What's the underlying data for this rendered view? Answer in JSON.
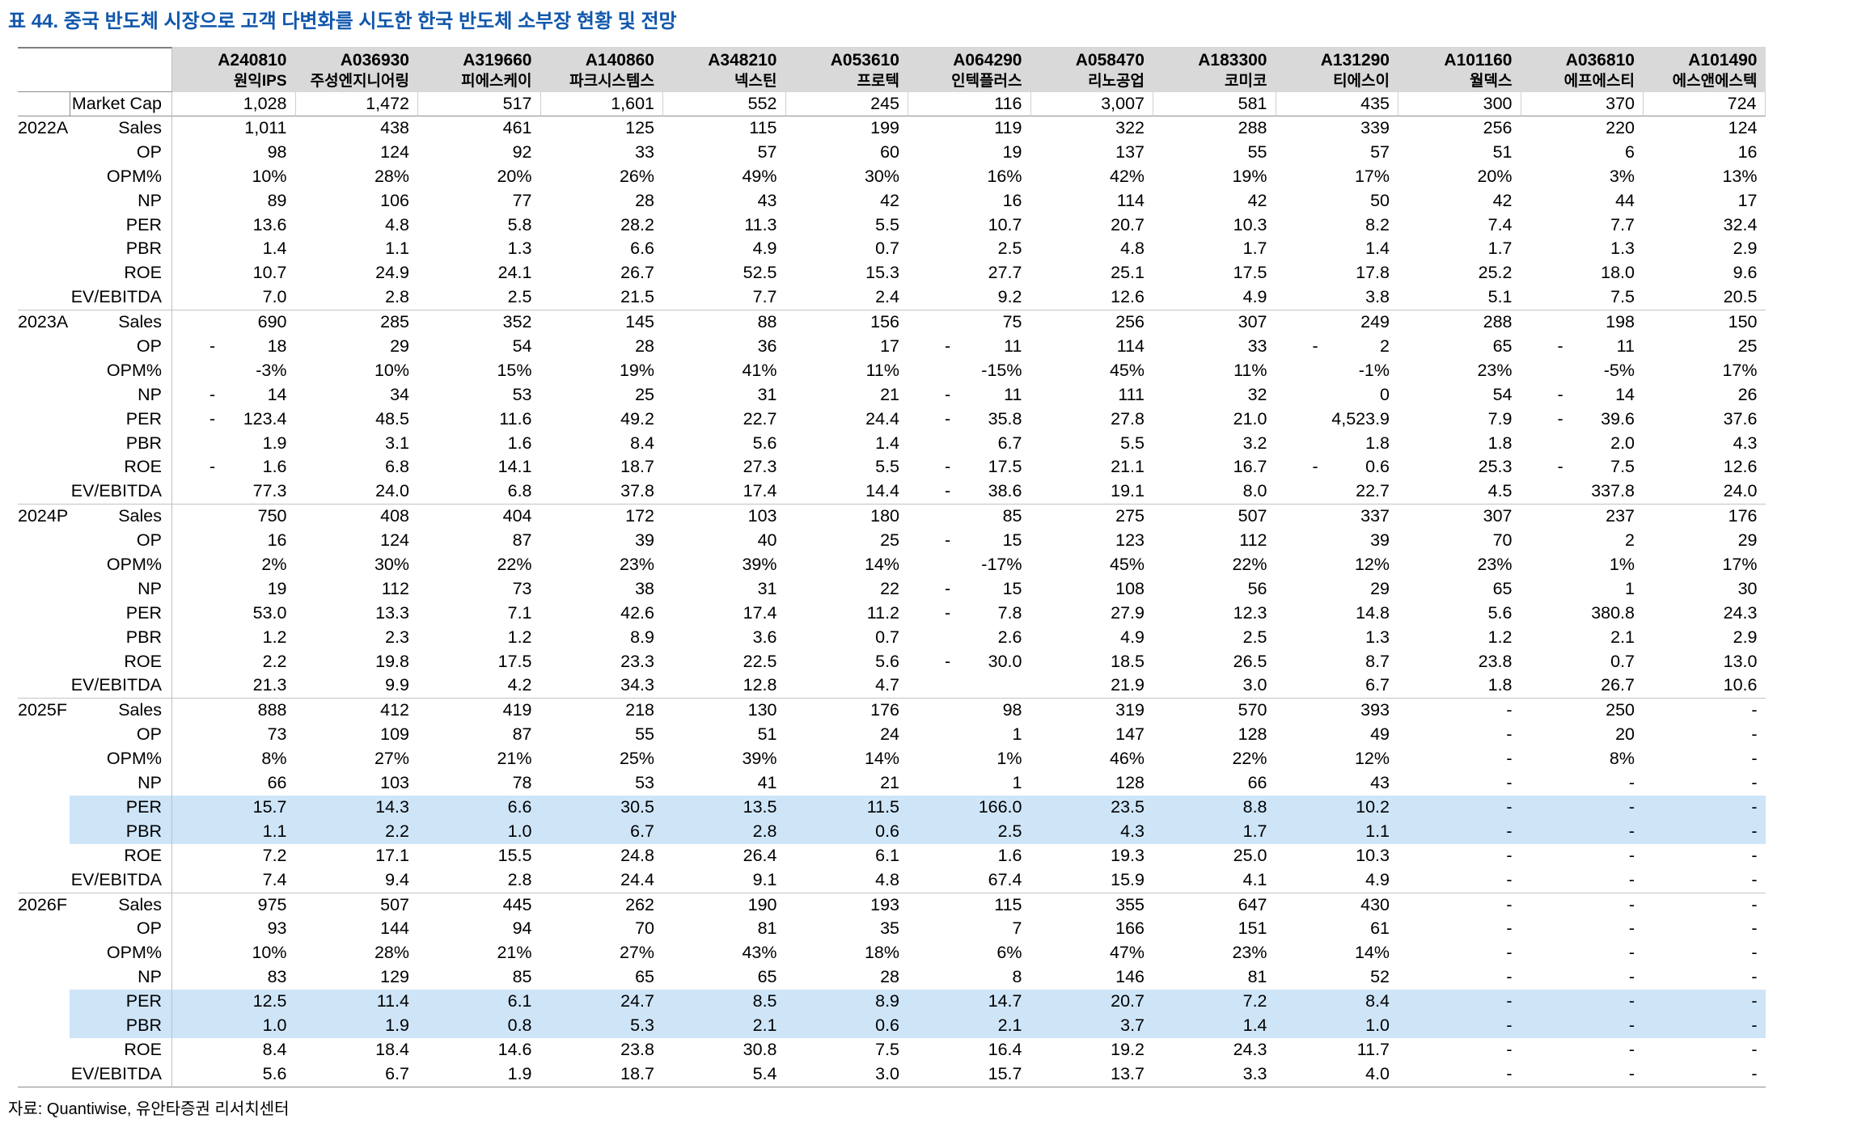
{
  "title": "표 44. 중국 반도체 시장으로 고객 다변화를 시도한 한국 반도체 소부장 현황 및 전망",
  "footer": "자료: Quantiwise, 유안타증권 리서치센터",
  "colors": {
    "title_blue": "#1157ab",
    "header_gray": "#d9d9d9",
    "highlight_blue": "#cee5f8"
  },
  "table": {
    "market_cap_label": "Market Cap",
    "companies": [
      {
        "code": "A240810",
        "name": "원익IPS"
      },
      {
        "code": "A036930",
        "name": "주성엔지니어링"
      },
      {
        "code": "A319660",
        "name": "피에스케이"
      },
      {
        "code": "A140860",
        "name": "파크시스템스"
      },
      {
        "code": "A348210",
        "name": "넥스틴"
      },
      {
        "code": "A053610",
        "name": "프로텍"
      },
      {
        "code": "A064290",
        "name": "인텍플러스"
      },
      {
        "code": "A058470",
        "name": "리노공업"
      },
      {
        "code": "A183300",
        "name": "코미코"
      },
      {
        "code": "A131290",
        "name": "티에스이"
      },
      {
        "code": "A101160",
        "name": "월덱스"
      },
      {
        "code": "A036810",
        "name": "에프에스티"
      },
      {
        "code": "A101490",
        "name": "에스앤에스텍"
      }
    ],
    "market_cap": [
      "1,028",
      "1,472",
      "517",
      "1,601",
      "552",
      "245",
      "116",
      "3,007",
      "581",
      "435",
      "300",
      "370",
      "724"
    ],
    "sections": [
      {
        "year": "2022A",
        "rows": [
          {
            "metric": "Sales",
            "values": [
              "1,011",
              "438",
              "461",
              "125",
              "115",
              "199",
              "119",
              "322",
              "288",
              "339",
              "256",
              "220",
              "124"
            ]
          },
          {
            "metric": "OP",
            "values": [
              "98",
              "124",
              "92",
              "33",
              "57",
              "60",
              "19",
              "137",
              "55",
              "57",
              "51",
              "6",
              "16"
            ]
          },
          {
            "metric": "OPM%",
            "values": [
              "10%",
              "28%",
              "20%",
              "26%",
              "49%",
              "30%",
              "16%",
              "42%",
              "19%",
              "17%",
              "20%",
              "3%",
              "13%"
            ]
          },
          {
            "metric": "NP",
            "values": [
              "89",
              "106",
              "77",
              "28",
              "43",
              "42",
              "16",
              "114",
              "42",
              "50",
              "42",
              "44",
              "17"
            ]
          },
          {
            "metric": "PER",
            "values": [
              "13.6",
              "4.8",
              "5.8",
              "28.2",
              "11.3",
              "5.5",
              "10.7",
              "20.7",
              "10.3",
              "8.2",
              "7.4",
              "7.7",
              "32.4"
            ]
          },
          {
            "metric": "PBR",
            "values": [
              "1.4",
              "1.1",
              "1.3",
              "6.6",
              "4.9",
              "0.7",
              "2.5",
              "4.8",
              "1.7",
              "1.4",
              "1.7",
              "1.3",
              "2.9"
            ]
          },
          {
            "metric": "ROE",
            "values": [
              "10.7",
              "24.9",
              "24.1",
              "26.7",
              "52.5",
              "15.3",
              "27.7",
              "25.1",
              "17.5",
              "17.8",
              "25.2",
              "18.0",
              "9.6"
            ]
          },
          {
            "metric": "EV/EBITDA",
            "values": [
              "7.0",
              "2.8",
              "2.5",
              "21.5",
              "7.7",
              "2.4",
              "9.2",
              "12.6",
              "4.9",
              "3.8",
              "5.1",
              "7.5",
              "20.5"
            ]
          }
        ]
      },
      {
        "year": "2023A",
        "rows": [
          {
            "metric": "Sales",
            "values": [
              "690",
              "285",
              "352",
              "145",
              "88",
              "156",
              "75",
              "256",
              "307",
              "249",
              "288",
              "198",
              "150"
            ]
          },
          {
            "metric": "OP",
            "values": [
              "- 18",
              "29",
              "54",
              "28",
              "36",
              "17",
              "- 11",
              "114",
              "33",
              "- 2",
              "65",
              "- 11",
              "25"
            ]
          },
          {
            "metric": "OPM%",
            "values": [
              "-3%",
              "10%",
              "15%",
              "19%",
              "41%",
              "11%",
              "-15%",
              "45%",
              "11%",
              "-1%",
              "23%",
              "-5%",
              "17%"
            ]
          },
          {
            "metric": "NP",
            "values": [
              "- 14",
              "34",
              "53",
              "25",
              "31",
              "21",
              "- 11",
              "111",
              "32",
              "0",
              "54",
              "- 14",
              "26"
            ]
          },
          {
            "metric": "PER",
            "values": [
              "- 123.4",
              "48.5",
              "11.6",
              "49.2",
              "22.7",
              "24.4",
              "- 35.8",
              "27.8",
              "21.0",
              "4,523.9",
              "7.9",
              "- 39.6",
              "37.6"
            ]
          },
          {
            "metric": "PBR",
            "values": [
              "1.9",
              "3.1",
              "1.6",
              "8.4",
              "5.6",
              "1.4",
              "6.7",
              "5.5",
              "3.2",
              "1.8",
              "1.8",
              "2.0",
              "4.3"
            ]
          },
          {
            "metric": "ROE",
            "values": [
              "- 1.6",
              "6.8",
              "14.1",
              "18.7",
              "27.3",
              "5.5",
              "- 17.5",
              "21.1",
              "16.7",
              "- 0.6",
              "25.3",
              "- 7.5",
              "12.6"
            ]
          },
          {
            "metric": "EV/EBITDA",
            "values": [
              "77.3",
              "24.0",
              "6.8",
              "37.8",
              "17.4",
              "14.4",
              "- 38.6",
              "19.1",
              "8.0",
              "22.7",
              "4.5",
              "337.8",
              "24.0"
            ]
          }
        ]
      },
      {
        "year": "2024P",
        "rows": [
          {
            "metric": "Sales",
            "values": [
              "750",
              "408",
              "404",
              "172",
              "103",
              "180",
              "85",
              "275",
              "507",
              "337",
              "307",
              "237",
              "176"
            ]
          },
          {
            "metric": "OP",
            "values": [
              "16",
              "124",
              "87",
              "39",
              "40",
              "25",
              "- 15",
              "123",
              "112",
              "39",
              "70",
              "2",
              "29"
            ]
          },
          {
            "metric": "OPM%",
            "values": [
              "2%",
              "30%",
              "22%",
              "23%",
              "39%",
              "14%",
              "-17%",
              "45%",
              "22%",
              "12%",
              "23%",
              "1%",
              "17%"
            ]
          },
          {
            "metric": "NP",
            "values": [
              "19",
              "112",
              "73",
              "38",
              "31",
              "22",
              "- 15",
              "108",
              "56",
              "29",
              "65",
              "1",
              "30"
            ]
          },
          {
            "metric": "PER",
            "values": [
              "53.0",
              "13.3",
              "7.1",
              "42.6",
              "17.4",
              "11.2",
              "- 7.8",
              "27.9",
              "12.3",
              "14.8",
              "5.6",
              "380.8",
              "24.3"
            ]
          },
          {
            "metric": "PBR",
            "values": [
              "1.2",
              "2.3",
              "1.2",
              "8.9",
              "3.6",
              "0.7",
              "2.6",
              "4.9",
              "2.5",
              "1.3",
              "1.2",
              "2.1",
              "2.9"
            ]
          },
          {
            "metric": "ROE",
            "values": [
              "2.2",
              "19.8",
              "17.5",
              "23.3",
              "22.5",
              "5.6",
              "- 30.0",
              "18.5",
              "26.5",
              "8.7",
              "23.8",
              "0.7",
              "13.0"
            ]
          },
          {
            "metric": "EV/EBITDA",
            "values": [
              "21.3",
              "9.9",
              "4.2",
              "34.3",
              "12.8",
              "4.7",
              "",
              "21.9",
              "3.0",
              "6.7",
              "1.8",
              "26.7",
              "10.6"
            ]
          }
        ]
      },
      {
        "year": "2025F",
        "rows": [
          {
            "metric": "Sales",
            "values": [
              "888",
              "412",
              "419",
              "218",
              "130",
              "176",
              "98",
              "319",
              "570",
              "393",
              "-",
              "250",
              "-"
            ]
          },
          {
            "metric": "OP",
            "values": [
              "73",
              "109",
              "87",
              "55",
              "51",
              "24",
              "1",
              "147",
              "128",
              "49",
              "-",
              "20",
              "-"
            ]
          },
          {
            "metric": "OPM%",
            "values": [
              "8%",
              "27%",
              "21%",
              "25%",
              "39%",
              "14%",
              "1%",
              "46%",
              "22%",
              "12%",
              "-",
              "8%",
              "-"
            ]
          },
          {
            "metric": "NP",
            "values": [
              "66",
              "103",
              "78",
              "53",
              "41",
              "21",
              "1",
              "128",
              "66",
              "43",
              "-",
              "-",
              "-"
            ]
          },
          {
            "metric": "PER",
            "highlight": true,
            "values": [
              "15.7",
              "14.3",
              "6.6",
              "30.5",
              "13.5",
              "11.5",
              "166.0",
              "23.5",
              "8.8",
              "10.2",
              "-",
              "-",
              "-"
            ]
          },
          {
            "metric": "PBR",
            "highlight": true,
            "values": [
              "1.1",
              "2.2",
              "1.0",
              "6.7",
              "2.8",
              "0.6",
              "2.5",
              "4.3",
              "1.7",
              "1.1",
              "-",
              "-",
              "-"
            ]
          },
          {
            "metric": "ROE",
            "values": [
              "7.2",
              "17.1",
              "15.5",
              "24.8",
              "26.4",
              "6.1",
              "1.6",
              "19.3",
              "25.0",
              "10.3",
              "-",
              "-",
              "-"
            ]
          },
          {
            "metric": "EV/EBITDA",
            "values": [
              "7.4",
              "9.4",
              "2.8",
              "24.4",
              "9.1",
              "4.8",
              "67.4",
              "15.9",
              "4.1",
              "4.9",
              "-",
              "-",
              "-"
            ]
          }
        ]
      },
      {
        "year": "2026F",
        "rows": [
          {
            "metric": "Sales",
            "values": [
              "975",
              "507",
              "445",
              "262",
              "190",
              "193",
              "115",
              "355",
              "647",
              "430",
              "-",
              "-",
              "-"
            ]
          },
          {
            "metric": "OP",
            "values": [
              "93",
              "144",
              "94",
              "70",
              "81",
              "35",
              "7",
              "166",
              "151",
              "61",
              "-",
              "-",
              "-"
            ]
          },
          {
            "metric": "OPM%",
            "values": [
              "10%",
              "28%",
              "21%",
              "27%",
              "43%",
              "18%",
              "6%",
              "47%",
              "23%",
              "14%",
              "-",
              "-",
              "-"
            ]
          },
          {
            "metric": "NP",
            "values": [
              "83",
              "129",
              "85",
              "65",
              "65",
              "28",
              "8",
              "146",
              "81",
              "52",
              "-",
              "-",
              "-"
            ]
          },
          {
            "metric": "PER",
            "highlight": true,
            "values": [
              "12.5",
              "11.4",
              "6.1",
              "24.7",
              "8.5",
              "8.9",
              "14.7",
              "20.7",
              "7.2",
              "8.4",
              "-",
              "-",
              "-"
            ]
          },
          {
            "metric": "PBR",
            "highlight": true,
            "values": [
              "1.0",
              "1.9",
              "0.8",
              "5.3",
              "2.1",
              "0.6",
              "2.1",
              "3.7",
              "1.4",
              "1.0",
              "-",
              "-",
              "-"
            ]
          },
          {
            "metric": "ROE",
            "values": [
              "8.4",
              "18.4",
              "14.6",
              "23.8",
              "30.8",
              "7.5",
              "16.4",
              "19.2",
              "24.3",
              "11.7",
              "-",
              "-",
              "-"
            ]
          },
          {
            "metric": "EV/EBITDA",
            "values": [
              "5.6",
              "6.7",
              "1.9",
              "18.7",
              "5.4",
              "3.0",
              "15.7",
              "13.7",
              "3.3",
              "4.0",
              "-",
              "-",
              "-"
            ]
          }
        ]
      }
    ]
  }
}
